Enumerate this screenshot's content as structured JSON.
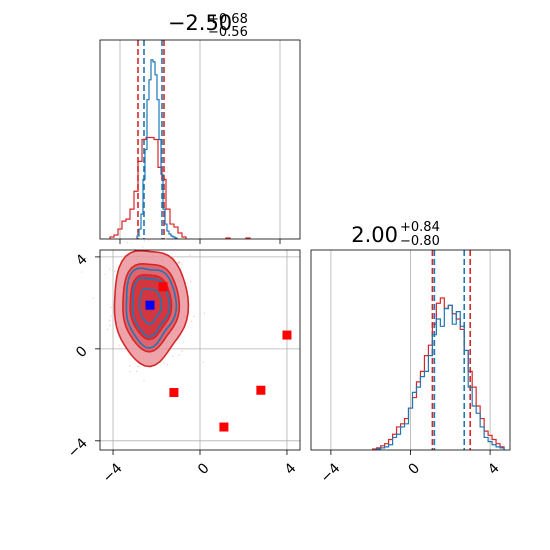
{
  "chart_data": {
    "type": "corner",
    "panels": [
      {
        "id": "hist-x",
        "type": "histogram",
        "title": {
          "value": "−2.50",
          "upper": "+0.68",
          "lower": "−0.56"
        },
        "xlim": [
          -5,
          5
        ],
        "quantile_lines_blue": [
          -2.8,
          -1.9
        ],
        "quantile_lines_red": [
          -3.1,
          -1.8
        ],
        "blue_hist": {
          "bin_width": 0.1,
          "centers": [
            -3.1,
            -3.0,
            -2.9,
            -2.8,
            -2.7,
            -2.6,
            -2.5,
            -2.4,
            -2.3,
            -2.2,
            -2.1,
            -2.0,
            -1.9,
            -1.8,
            -1.7,
            -1.6,
            -1.5,
            -1.4,
            -1.3,
            -1.2
          ],
          "counts": [
            3,
            10,
            25,
            60,
            90,
            140,
            160,
            180,
            178,
            165,
            140,
            100,
            65,
            30,
            15,
            8,
            5,
            3,
            2,
            1
          ]
        },
        "red_hist": {
          "bin_width": 0.2,
          "centers": [
            -4.4,
            -4.2,
            -4.0,
            -3.8,
            -3.6,
            -3.4,
            -3.2,
            -3.0,
            -2.8,
            -2.6,
            -2.4,
            -2.2,
            -2.0,
            -1.8,
            -1.6,
            -1.4,
            -1.2,
            -1.0,
            -0.8,
            1.4,
            2.4
          ],
          "counts": [
            2,
            4,
            10,
            18,
            20,
            30,
            48,
            78,
            100,
            102,
            102,
            100,
            72,
            60,
            30,
            15,
            12,
            6,
            2,
            1,
            1
          ]
        }
      },
      {
        "id": "scatter-xy",
        "type": "contour",
        "xlim": [
          -4.6,
          4.6
        ],
        "ylim": [
          -4.4,
          4.3
        ],
        "x_ticks": [
          -4,
          0,
          4
        ],
        "y_ticks": [
          -4,
          0,
          4
        ],
        "x_tick_labels": [
          "−4",
          "0",
          "4"
        ],
        "y_tick_labels": [
          "−4",
          "0",
          "4"
        ],
        "center": [
          -2.3,
          1.9
        ],
        "blue_marker": [
          -2.3,
          1.9
        ],
        "red_markers": [
          [
            -1.7,
            2.7
          ],
          [
            -1.2,
            -1.9
          ],
          [
            1.1,
            -3.4
          ],
          [
            2.8,
            -1.8
          ],
          [
            4.0,
            0.6
          ]
        ],
        "crosshair_x": [
          -4.0,
          4.0
        ],
        "crosshair_y": [
          4.0,
          0.0
        ],
        "red_contours": [
          {
            "rx": 1.7,
            "ry": 2.5,
            "fill": "#e88f96"
          },
          {
            "rx": 1.3,
            "ry": 1.9,
            "fill": "#dd5560"
          },
          {
            "rx": 0.95,
            "ry": 1.4,
            "fill": "#d12b35"
          }
        ],
        "blue_contours": [
          {
            "rx": 1.15,
            "ry": 1.7
          },
          {
            "rx": 0.85,
            "ry": 1.25
          },
          {
            "rx": 0.5,
            "ry": 0.75
          }
        ]
      },
      {
        "id": "hist-y",
        "type": "histogram",
        "title": {
          "value": "2.00",
          "upper": "+0.84",
          "lower": "−0.80"
        },
        "xlim": [
          -5,
          5
        ],
        "x_ticks": [
          -4,
          0,
          4
        ],
        "x_tick_labels": [
          "−4",
          "0",
          "4"
        ],
        "quantile_lines_blue": [
          1.2,
          2.7
        ],
        "quantile_lines_red": [
          1.1,
          3.0
        ],
        "blue_hist": {
          "bin_width": 0.2,
          "centers": [
            -1.6,
            -1.4,
            -1.2,
            -1.0,
            -0.8,
            -0.6,
            -0.4,
            -0.2,
            0.0,
            0.2,
            0.4,
            0.6,
            0.8,
            1.0,
            1.2,
            1.4,
            1.6,
            1.8,
            2.0,
            2.2,
            2.4,
            2.6,
            2.8,
            3.0,
            3.2,
            3.4,
            3.6,
            3.8,
            4.0,
            4.2,
            4.4,
            4.6
          ],
          "counts": [
            1,
            2,
            3,
            5,
            12,
            15,
            22,
            25,
            40,
            55,
            60,
            70,
            75,
            90,
            110,
            125,
            118,
            135,
            138,
            120,
            132,
            118,
            95,
            60,
            42,
            35,
            22,
            12,
            8,
            5,
            3,
            2
          ]
        },
        "red_hist": {
          "bin_width": 0.2,
          "centers": [
            -1.8,
            -1.6,
            -1.4,
            -1.2,
            -1.0,
            -0.8,
            -0.6,
            -0.4,
            -0.2,
            0.0,
            0.2,
            0.4,
            0.6,
            0.8,
            1.0,
            1.2,
            1.4,
            1.6,
            1.8,
            2.0,
            2.2,
            2.4,
            2.6,
            2.8,
            3.0,
            3.2,
            3.4,
            3.6,
            3.8,
            4.0,
            4.2,
            4.4,
            4.6
          ],
          "counts": [
            1,
            2,
            4,
            6,
            10,
            15,
            22,
            25,
            30,
            40,
            50,
            65,
            75,
            90,
            100,
            120,
            140,
            145,
            135,
            138,
            130,
            125,
            115,
            95,
            75,
            60,
            42,
            30,
            18,
            14,
            10,
            6,
            3
          ]
        }
      }
    ],
    "colors": {
      "blue": "#1f77b4",
      "red": "#d62728",
      "grid": "#b0b0b0",
      "marker_red": "#ff0000",
      "marker_blue": "#0000ff"
    }
  }
}
